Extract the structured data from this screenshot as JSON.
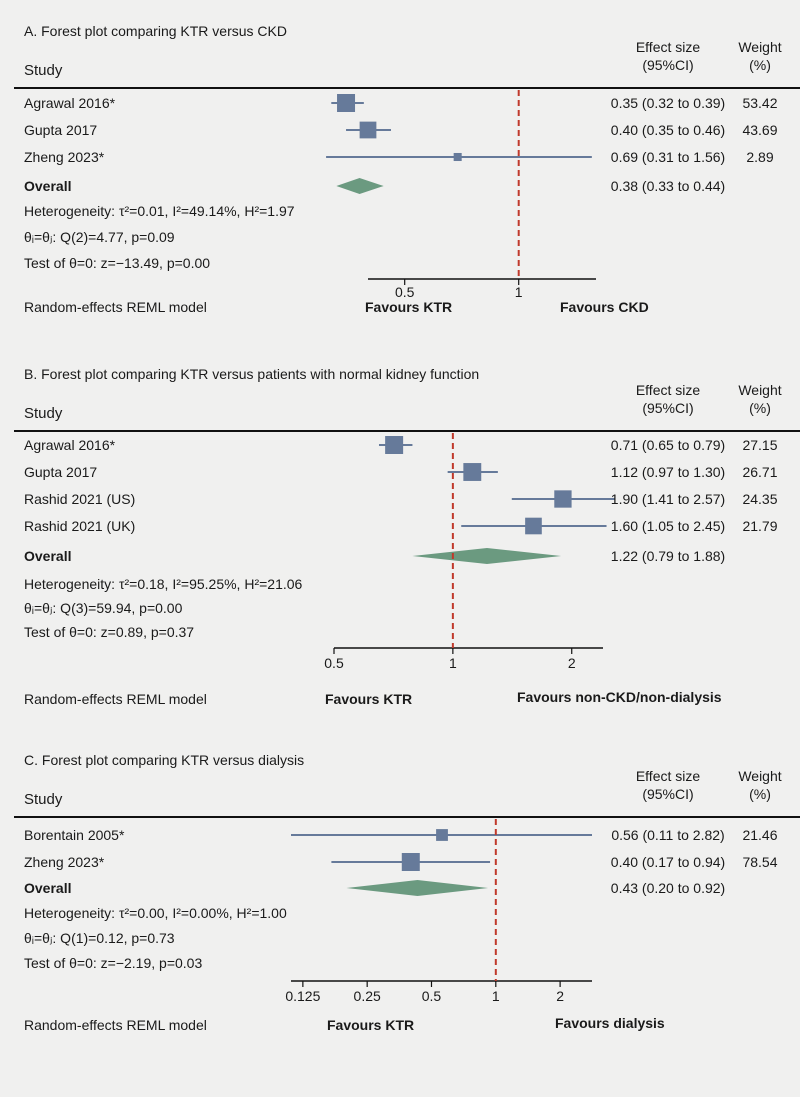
{
  "colors": {
    "background": "#f0f0ef",
    "study_marker": "#667a9a",
    "overall_diamond": "#6b9a80",
    "null_line": "#c0392b",
    "rule": "#111111"
  },
  "headers": {
    "study": "Study",
    "effect_line1": "Effect size",
    "effect_line2": "(95%CI)",
    "weight_line1": "Weight",
    "weight_line2": "(%)"
  },
  "chart_data": [
    {
      "type": "forest",
      "title": "A. Forest plot comparing KTR versus CKD",
      "scale": "log",
      "xlim": [
        0.4,
        1.6
      ],
      "xticks": [
        {
          "v": 0.5,
          "label": "0.5"
        },
        {
          "v": 1,
          "label": "1"
        }
      ],
      "null_value": 1,
      "studies": [
        {
          "name": "Agrawal 2016*",
          "est": 0.35,
          "lo": 0.32,
          "hi": 0.39,
          "weight": 53.42,
          "ci_text": "0.35 (0.32 to 0.39)",
          "weight_text": "53.42"
        },
        {
          "name": "Gupta 2017",
          "est": 0.4,
          "lo": 0.35,
          "hi": 0.46,
          "weight": 43.69,
          "ci_text": "0.40 (0.35 to 0.46)",
          "weight_text": "43.69"
        },
        {
          "name": "Zheng 2023*",
          "est": 0.69,
          "lo": 0.31,
          "hi": 1.56,
          "weight": 2.89,
          "ci_text": "0.69 (0.31 to 1.56)",
          "weight_text": "2.89"
        }
      ],
      "overall": {
        "label": "Overall",
        "est": 0.38,
        "lo": 0.33,
        "hi": 0.44,
        "ci_text": "0.38 (0.33 to 0.44)"
      },
      "stats": [
        "Heterogeneity: τ²=0.01, I²=49.14%, H²=1.97",
        "θᵢ=θⱼ: Q(2)=4.77, p=0.09",
        "Test of θ=0: z=−13.49, p=0.00"
      ],
      "model": "Random-effects REML model",
      "favours_left": "Favours KTR",
      "favours_right": "Favours CKD"
    },
    {
      "type": "forest",
      "title": "B. Forest plot comparing KTR versus patients with normal kidney function",
      "scale": "log",
      "xlim": [
        0.5,
        2.4
      ],
      "xticks": [
        {
          "v": 0.5,
          "label": "0.5"
        },
        {
          "v": 1,
          "label": "1"
        },
        {
          "v": 2,
          "label": "2"
        }
      ],
      "null_value": 1,
      "studies": [
        {
          "name": "Agrawal 2016*",
          "est": 0.71,
          "lo": 0.65,
          "hi": 0.79,
          "weight": 27.15,
          "ci_text": "0.71 (0.65 to 0.79)",
          "weight_text": "27.15"
        },
        {
          "name": "Gupta 2017",
          "est": 1.12,
          "lo": 0.97,
          "hi": 1.3,
          "weight": 26.71,
          "ci_text": "1.12 (0.97 to 1.30)",
          "weight_text": "26.71"
        },
        {
          "name": "Rashid 2021 (US)",
          "est": 1.9,
          "lo": 1.41,
          "hi": 2.57,
          "weight": 24.35,
          "ci_text": "1.90 (1.41 to 2.57)",
          "weight_text": "24.35"
        },
        {
          "name": "Rashid 2021 (UK)",
          "est": 1.6,
          "lo": 1.05,
          "hi": 2.45,
          "weight": 21.79,
          "ci_text": "1.60 (1.05 to 2.45)",
          "weight_text": "21.79"
        }
      ],
      "overall": {
        "label": "Overall",
        "est": 1.22,
        "lo": 0.79,
        "hi": 1.88,
        "ci_text": "1.22 (0.79 to 1.88)"
      },
      "stats": [
        "Heterogeneity: τ²=0.18, I²=95.25%, H²=21.06",
        "θᵢ=θⱼ: Q(3)=59.94, p=0.00",
        "Test of θ=0: z=0.89, p=0.37"
      ],
      "model": "Random-effects REML model",
      "favours_left": "Favours KTR",
      "favours_right": "Favours non-CKD/non-dialysis"
    },
    {
      "type": "forest",
      "title": "C. Forest plot comparing KTR versus dialysis",
      "scale": "log",
      "xlim": [
        0.11,
        2.82
      ],
      "xticks": [
        {
          "v": 0.125,
          "label": "0.125"
        },
        {
          "v": 0.25,
          "label": "0.25"
        },
        {
          "v": 0.5,
          "label": "0.5"
        },
        {
          "v": 1,
          "label": "1"
        },
        {
          "v": 2,
          "label": "2"
        }
      ],
      "null_value": 1,
      "studies": [
        {
          "name": "Borentain 2005*",
          "est": 0.56,
          "lo": 0.11,
          "hi": 2.82,
          "weight": 21.46,
          "ci_text": "0.56 (0.11 to 2.82)",
          "weight_text": "21.46"
        },
        {
          "name": "Zheng 2023*",
          "est": 0.4,
          "lo": 0.17,
          "hi": 0.94,
          "weight": 78.54,
          "ci_text": "0.40 (0.17 to 0.94)",
          "weight_text": "78.54"
        }
      ],
      "overall": {
        "label": "Overall",
        "est": 0.43,
        "lo": 0.2,
        "hi": 0.92,
        "ci_text": "0.43 (0.20 to 0.92)"
      },
      "stats": [
        "Heterogeneity: τ²=0.00, I²=0.00%, H²=1.00",
        "θᵢ=θⱼ: Q(1)=0.12, p=0.73",
        "Test of θ=0: z=−2.19, p=0.03"
      ],
      "model": "Random-effects REML model",
      "favours_left": "Favours KTR",
      "favours_right": "Favours dialysis"
    }
  ]
}
